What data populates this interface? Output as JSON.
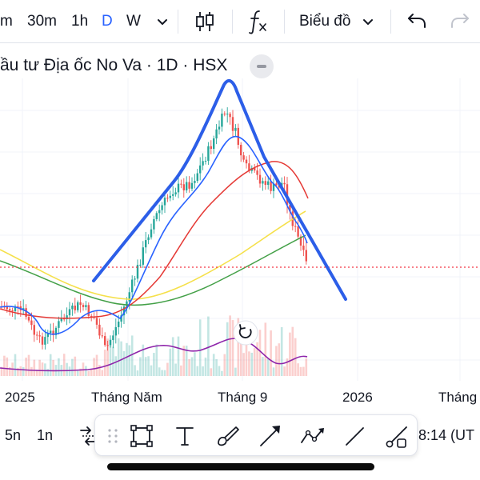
{
  "toolbar": {
    "interval_m": "m",
    "interval_30m": "30m",
    "interval_1h": "1h",
    "interval_d": "D",
    "interval_w": "W",
    "chart_type_menu": "Biểu đồ"
  },
  "legend": {
    "symbol_title": "ầu tư Địa ốc No Va · 1D · HSX"
  },
  "x_axis": {
    "labels": [
      "2025",
      "Tháng Năm",
      "Tháng 9",
      "2026",
      "Tháng"
    ]
  },
  "bottom": {
    "range_5d": "5n",
    "range_1d": "1n",
    "time_readout": "8:14 (UT"
  },
  "icons": {
    "chevron": "chevron-down-icon",
    "candles": "candlestick-icon",
    "indicators": "fx-icon",
    "undo": "undo-icon",
    "redo": "redo-icon",
    "reset": "reset-chart-icon",
    "compare": "compare-icon",
    "drag": "drag-handle-icon",
    "rect": "rectangle-tool-icon",
    "text": "text-tool-icon",
    "brush": "brush-tool-icon",
    "arrow": "arrow-tool-icon",
    "path": "path-tool-icon",
    "line": "trend-line-tool-icon",
    "ray": "ray-tool-icon"
  },
  "colors": {
    "accent": "#2962ff",
    "up": "#26a69a",
    "down": "#ef5350",
    "drawing": "#2c5ee8",
    "ma_short": "#2962ff",
    "ma_mid": "#e53935",
    "ma_long_yellow": "#f5e04a",
    "ma_long_green": "#43a047",
    "volume_ma": "#8e24aa",
    "price_line": "#f23645"
  }
}
